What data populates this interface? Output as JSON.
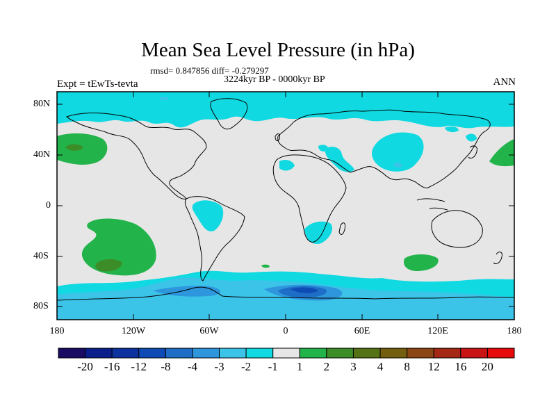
{
  "title": "Mean Sea Level Pressure (in hPa)",
  "stats": "rmsd= 0.847856 diff= -0.279297",
  "period": "3224kyr BP - 0000kyr BP",
  "experiment": "Expt = tEwTs-tevta",
  "season": "ANN",
  "y_ticks": [
    "80N",
    "40N",
    "0",
    "40S",
    "80S"
  ],
  "x_ticks": [
    "180",
    "120W",
    "60W",
    "0",
    "60E",
    "120E",
    "180"
  ],
  "colorbar": {
    "labels": [
      "-20",
      "-16",
      "-12",
      "-8",
      "-4",
      "-3",
      "-2",
      "-1",
      "1",
      "2",
      "3",
      "4",
      "8",
      "12",
      "16",
      "20"
    ],
    "colors": [
      "#1a0c64",
      "#0a1e8c",
      "#0c32a0",
      "#0f4bb4",
      "#1e6ec8",
      "#2d96dc",
      "#3cc3e8",
      "#10d9e1",
      "#e6e6e6",
      "#22b44a",
      "#3c8c28",
      "#557314",
      "#735f0f",
      "#8c4614",
      "#a52814",
      "#c81414",
      "#e60a0a"
    ]
  }
}
